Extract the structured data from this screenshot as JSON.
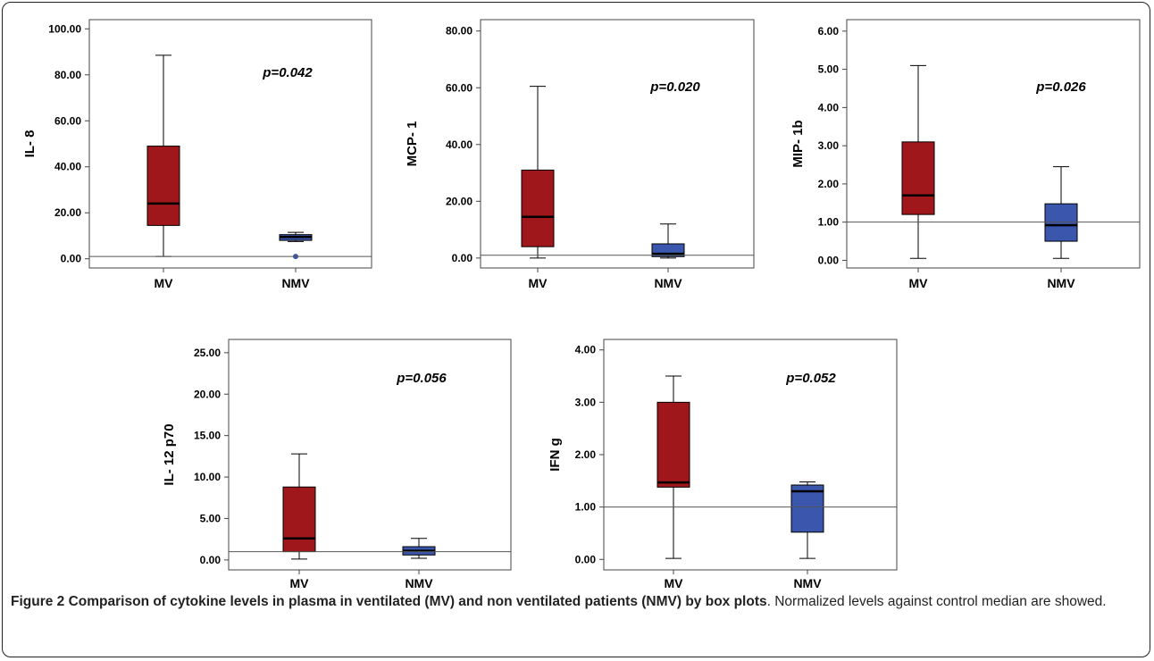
{
  "caption": {
    "label": "Figure 2",
    "title": "Comparison of cytokine levels in plasma in ventilated (MV) and non ventilated patients (NMV) by box plots",
    "body": ". Normalized levels against control median are showed."
  },
  "colors": {
    "MV": "#a0171b",
    "NMV": "#3a56ad",
    "reference_line": "#555555"
  },
  "chart_data": [
    {
      "type": "box",
      "ylabel": "IL- 8",
      "annotation": "p=0.042",
      "categories": [
        "MV",
        "NMV"
      ],
      "ylim": [
        -4,
        104
      ],
      "yticks": [
        0,
        20,
        40,
        60,
        80,
        100
      ],
      "ytick_labels": [
        "0.00",
        "20.00",
        "40.00",
        "60.00",
        "80.00",
        "100.00"
      ],
      "reference_line": 1,
      "boxes": [
        {
          "name": "MV",
          "whisker_low": 1,
          "q1": 14.5,
          "median": 24,
          "q3": 49,
          "whisker_high": 88.5,
          "outliers": []
        },
        {
          "name": "NMV",
          "whisker_low": 7.5,
          "q1": 8,
          "median": 9.5,
          "q3": 10.5,
          "whisker_high": 11.5,
          "outliers": [
            1
          ]
        }
      ]
    },
    {
      "type": "box",
      "ylabel": "MCP- 1",
      "annotation": "p=0.020",
      "categories": [
        "MV",
        "NMV"
      ],
      "ylim": [
        -3.5,
        84
      ],
      "yticks": [
        0,
        20,
        40,
        60,
        80
      ],
      "ytick_labels": [
        "0.00",
        "20.00",
        "40.00",
        "60.00",
        "80.00"
      ],
      "reference_line": 1,
      "boxes": [
        {
          "name": "MV",
          "whisker_low": 0,
          "q1": 4,
          "median": 14.5,
          "q3": 31,
          "whisker_high": 60.5,
          "outliers": []
        },
        {
          "name": "NMV",
          "whisker_low": 0,
          "q1": 0.5,
          "median": 1.5,
          "q3": 5,
          "whisker_high": 12,
          "outliers": []
        }
      ]
    },
    {
      "type": "box",
      "ylabel": "MIP- 1b",
      "annotation": "p=0.026",
      "categories": [
        "MV",
        "NMV"
      ],
      "ylim": [
        -0.2,
        6.3
      ],
      "yticks": [
        0,
        1,
        2,
        3,
        4,
        5,
        6
      ],
      "ytick_labels": [
        "0.00",
        "1.00",
        "2.00",
        "3.00",
        "4.00",
        "5.00",
        "6.00"
      ],
      "reference_line": 1,
      "boxes": [
        {
          "name": "MV",
          "whisker_low": 0.05,
          "q1": 1.2,
          "median": 1.7,
          "q3": 3.1,
          "whisker_high": 5.1,
          "outliers": []
        },
        {
          "name": "NMV",
          "whisker_low": 0.05,
          "q1": 0.5,
          "median": 0.92,
          "q3": 1.48,
          "whisker_high": 2.45,
          "outliers": []
        }
      ]
    },
    {
      "type": "box",
      "ylabel": "IL- 12 p70",
      "annotation": "p=0.056",
      "categories": [
        "MV",
        "NMV"
      ],
      "ylim": [
        -1.2,
        26.6
      ],
      "yticks": [
        0,
        5,
        10,
        15,
        20,
        25
      ],
      "ytick_labels": [
        "0.00",
        "5.00",
        "10.00",
        "15.00",
        "20.00",
        "25.00"
      ],
      "reference_line": 1,
      "boxes": [
        {
          "name": "MV",
          "whisker_low": 0.1,
          "q1": 1,
          "median": 2.6,
          "q3": 8.8,
          "whisker_high": 12.8,
          "outliers": []
        },
        {
          "name": "NMV",
          "whisker_low": 0.2,
          "q1": 0.6,
          "median": 1.1,
          "q3": 1.6,
          "whisker_high": 2.6,
          "outliers": []
        }
      ]
    },
    {
      "type": "box",
      "ylabel": "IFN g",
      "annotation": "p=0.052",
      "categories": [
        "MV",
        "NMV"
      ],
      "ylim": [
        -0.2,
        4.2
      ],
      "yticks": [
        0,
        1,
        2,
        3,
        4
      ],
      "ytick_labels": [
        "0.00",
        "1.00",
        "2.00",
        "3.00",
        "4.00"
      ],
      "reference_line": 1,
      "boxes": [
        {
          "name": "MV",
          "whisker_low": 0.02,
          "q1": 1.38,
          "median": 1.47,
          "q3": 3.0,
          "whisker_high": 3.5,
          "outliers": []
        },
        {
          "name": "NMV",
          "whisker_low": 0.02,
          "q1": 0.52,
          "median": 1.3,
          "q3": 1.42,
          "whisker_high": 1.48,
          "outliers": []
        }
      ]
    }
  ]
}
